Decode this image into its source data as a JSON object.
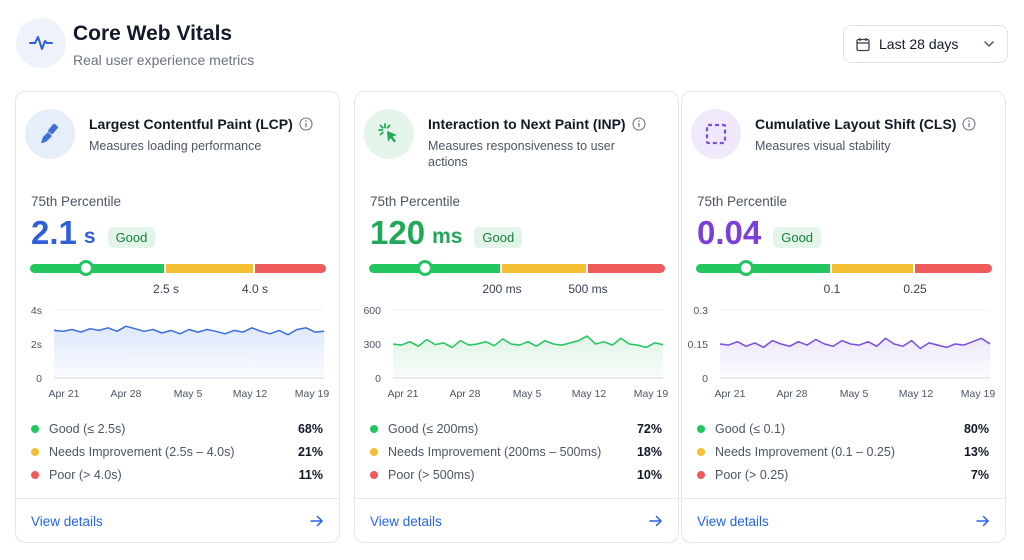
{
  "header": {
    "title": "Core Web Vitals",
    "subtitle": "Real user experience metrics",
    "range_label": "Last 28 days",
    "icons": [
      "pulse-icon",
      "calendar-icon",
      "chevron-down-icon"
    ]
  },
  "x_ticks": [
    "Apr 21",
    "Apr 28",
    "May 5",
    "May 12",
    "May 19"
  ],
  "cards": [
    {
      "title": "Largest Contentful Paint (LCP)",
      "description": "Measures loading performance",
      "icon": "paintbrush-icon",
      "icon_color": "#3b6fd9",
      "icon_bg": "#e6eefb",
      "percentile_label": "75th Percentile",
      "value": "2.1",
      "unit": "s",
      "value_color": "#2f5fd9",
      "badge": "Good",
      "marker_fraction": 0.19,
      "segments": [
        0.46,
        0.3,
        0.24
      ],
      "thresholds": [
        "2.5 s",
        "4.0 s"
      ],
      "link": "View details",
      "legend": [
        {
          "label": "Good",
          "range": "(≤ 2.5s)",
          "percent": "68%",
          "color": "#22c55e"
        },
        {
          "label": "Needs Improvement",
          "range": "(2.5s – 4.0s)",
          "percent": "21%",
          "color": "#f4bf33"
        },
        {
          "label": "Poor",
          "range": "(> 4.0s)",
          "percent": "11%",
          "color": "#ef5a5a"
        }
      ],
      "chart": {
        "y_ticks": [
          "4s",
          "2s",
          "0"
        ],
        "ymax": 4,
        "line_color": "#3b6fd9",
        "fill_color": "#dbe6fb",
        "series": [
          2.8,
          2.75,
          2.85,
          2.7,
          2.9,
          2.8,
          2.95,
          2.75,
          3.05,
          2.9,
          2.75,
          2.85,
          2.65,
          2.8,
          2.6,
          2.85,
          2.7,
          2.85,
          2.75,
          2.6,
          2.8,
          2.7,
          2.95,
          2.75,
          2.6,
          2.8,
          2.55,
          2.85,
          2.95,
          2.7,
          2.75
        ]
      }
    },
    {
      "title": "Interaction to Next Paint (INP)",
      "description": "Measures responsiveness to user actions",
      "icon": "cursor-click-icon",
      "icon_color": "#22a85a",
      "icon_bg": "#e3f5e8",
      "percentile_label": "75th Percentile",
      "value": "120",
      "unit": "ms",
      "value_color": "#22a85a",
      "badge": "Good",
      "marker_fraction": 0.19,
      "segments": [
        0.45,
        0.29,
        0.26
      ],
      "thresholds": [
        "200 ms",
        "500 ms"
      ],
      "link": "View details",
      "legend": [
        {
          "label": "Good",
          "range": "(≤ 200ms)",
          "percent": "72%",
          "color": "#22c55e"
        },
        {
          "label": "Needs Improvement",
          "range": "(200ms – 500ms)",
          "percent": "18%",
          "color": "#f4bf33"
        },
        {
          "label": "Poor",
          "range": "(> 500ms)",
          "percent": "10%",
          "color": "#ef5a5a"
        }
      ],
      "chart": {
        "y_ticks": [
          "600",
          "300",
          "0"
        ],
        "ymax": 600,
        "line_color": "#22c55e",
        "fill_color": "#dcf3e3",
        "series": [
          300,
          290,
          320,
          280,
          340,
          295,
          310,
          270,
          330,
          290,
          300,
          320,
          285,
          345,
          300,
          290,
          320,
          280,
          330,
          300,
          290,
          310,
          330,
          370,
          300,
          320,
          290,
          350,
          300,
          290,
          270,
          310,
          295
        ]
      }
    },
    {
      "title": "Cumulative Layout Shift (CLS)",
      "description": "Measures visual stability",
      "icon": "dashed-square-icon",
      "icon_color": "#7c4dde",
      "icon_bg": "#efe9fb",
      "percentile_label": "75th Percentile",
      "value": "0.04",
      "unit": "",
      "value_color": "#7c3fd8",
      "badge": "Good",
      "marker_fraction": 0.17,
      "segments": [
        0.46,
        0.28,
        0.26
      ],
      "thresholds": [
        "0.1",
        "0.25"
      ],
      "link": "View details",
      "legend": [
        {
          "label": "Good",
          "range": "(≤ 0.1)",
          "percent": "80%",
          "color": "#22c55e"
        },
        {
          "label": "Needs Improvement",
          "range": "(0.1 – 0.25)",
          "percent": "13%",
          "color": "#f4bf33"
        },
        {
          "label": "Poor",
          "range": "(> 0.25)",
          "percent": "7%",
          "color": "#ef5a5a"
        }
      ],
      "chart": {
        "y_ticks": [
          "0.3",
          "0.15",
          "0"
        ],
        "ymax": 0.3,
        "line_color": "#7c4dde",
        "fill_color": "#ece5fb",
        "series": [
          0.15,
          0.145,
          0.16,
          0.14,
          0.155,
          0.135,
          0.165,
          0.15,
          0.14,
          0.16,
          0.145,
          0.17,
          0.15,
          0.14,
          0.165,
          0.15,
          0.145,
          0.16,
          0.14,
          0.175,
          0.15,
          0.14,
          0.165,
          0.13,
          0.155,
          0.145,
          0.135,
          0.15,
          0.145,
          0.16,
          0.175,
          0.15
        ]
      }
    }
  ]
}
